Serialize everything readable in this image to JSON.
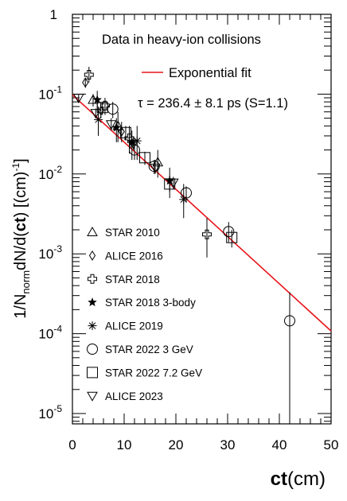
{
  "chart_data": {
    "type": "scatter",
    "annotations": {
      "header": "Data in heavy-ion collisions",
      "fit_label": "Exponential fit",
      "fit_result": "τ = 236.4 ± 8.1 ps (S=1.1)"
    },
    "y_axis_label": {
      "prefix": "1/N",
      "subscript": "norm",
      "middle": "dN/d(",
      "bold": "ct",
      "suffix": ") [(cm)",
      "superscript": "-1",
      "close": "]"
    },
    "x_axis_label": {
      "bold": "ct",
      "normal": "(cm)"
    },
    "xlim": [
      0,
      50
    ],
    "ylim": [
      8e-06,
      1
    ],
    "yscale": "log",
    "x_ticks": [
      "0",
      "10",
      "20",
      "30",
      "40",
      "50"
    ],
    "y_ticks": [
      {
        "base": "10",
        "exp": "-5",
        "value": 1e-05
      },
      {
        "base": "10",
        "exp": "-4",
        "value": 0.0001
      },
      {
        "base": "10",
        "exp": "-3",
        "value": 0.001
      },
      {
        "base": "10",
        "exp": "-2",
        "value": 0.01
      },
      {
        "base": "10",
        "exp": "-1",
        "value": 0.1
      },
      {
        "base": "1",
        "exp": "",
        "value": 1
      }
    ],
    "fit": {
      "name": "Exponential fit",
      "color": "#e8141a",
      "x": [
        0,
        50
      ],
      "y": [
        0.098,
        0.000108
      ]
    },
    "legend_position": "bottom-left",
    "series": [
      {
        "name": "STAR 2010",
        "marker": "triangle-up",
        "points": [
          {
            "x": 4.0,
            "y": 0.085,
            "ylo": 0.07,
            "yhi": 0.1
          },
          {
            "x": 8.8,
            "y": 0.04,
            "ylo": 0.025,
            "yhi": 0.06
          },
          {
            "x": 16.5,
            "y": 0.014,
            "ylo": 0.009,
            "yhi": 0.02
          }
        ]
      },
      {
        "name": "ALICE 2016",
        "marker": "diamond",
        "points": [
          {
            "x": 2.5,
            "y": 0.14,
            "ylo": 0.12,
            "yhi": 0.16
          },
          {
            "x": 5.5,
            "y": 0.062,
            "ylo": 0.05,
            "yhi": 0.08
          },
          {
            "x": 9.5,
            "y": 0.034,
            "ylo": 0.025,
            "yhi": 0.045
          }
        ]
      },
      {
        "name": "STAR 2018",
        "marker": "cross-open",
        "points": [
          {
            "x": 3.2,
            "y": 0.175,
            "ylo": 0.14,
            "yhi": 0.22
          },
          {
            "x": 6.3,
            "y": 0.072,
            "ylo": 0.055,
            "yhi": 0.09
          },
          {
            "x": 11.0,
            "y": 0.028,
            "ylo": 0.018,
            "yhi": 0.04
          },
          {
            "x": 26.0,
            "y": 0.00175,
            "ylo": 0.0009,
            "yhi": 0.0028
          }
        ]
      },
      {
        "name": "STAR 2018 3-body",
        "marker": "star-filled",
        "points": [
          {
            "x": 4.8,
            "y": 0.085,
            "ylo": 0.06,
            "yhi": 0.11
          },
          {
            "x": 8.5,
            "y": 0.038,
            "ylo": 0.025,
            "yhi": 0.05
          },
          {
            "x": 11.5,
            "y": 0.025,
            "ylo": 0.015,
            "yhi": 0.035
          },
          {
            "x": 18.8,
            "y": 0.0082,
            "ylo": 0.005,
            "yhi": 0.012
          }
        ]
      },
      {
        "name": "ALICE 2019",
        "marker": "asterisk",
        "points": [
          {
            "x": 5.0,
            "y": 0.048,
            "ylo": 0.03,
            "yhi": 0.07
          },
          {
            "x": 12.5,
            "y": 0.026,
            "ylo": 0.015,
            "yhi": 0.04
          },
          {
            "x": 21.5,
            "y": 0.0048,
            "ylo": 0.0028,
            "yhi": 0.0075
          }
        ]
      },
      {
        "name": "STAR 2022 3 GeV",
        "marker": "circle-open",
        "points": [
          {
            "x": 7.8,
            "y": 0.065,
            "ylo": 0.05,
            "yhi": 0.08
          },
          {
            "x": 12.0,
            "y": 0.02,
            "ylo": 0.015,
            "yhi": 0.025
          },
          {
            "x": 15.8,
            "y": 0.0125,
            "ylo": 0.01,
            "yhi": 0.015
          },
          {
            "x": 22.0,
            "y": 0.0058,
            "ylo": 0.0045,
            "yhi": 0.007
          },
          {
            "x": 30.2,
            "y": 0.0019,
            "ylo": 0.0014,
            "yhi": 0.0025
          },
          {
            "x": 42.0,
            "y": 0.000145,
            "ylo": 8e-06,
            "yhi": 0.00033
          }
        ]
      },
      {
        "name": "STAR 2022 7.2 GeV",
        "marker": "square-open",
        "points": [
          {
            "x": 5.8,
            "y": 0.068,
            "ylo": 0.055,
            "yhi": 0.08
          },
          {
            "x": 10.3,
            "y": 0.033,
            "ylo": 0.027,
            "yhi": 0.04
          },
          {
            "x": 14.0,
            "y": 0.016,
            "ylo": 0.013,
            "yhi": 0.019
          },
          {
            "x": 18.8,
            "y": 0.0075,
            "ylo": 0.006,
            "yhi": 0.0095
          },
          {
            "x": 30.8,
            "y": 0.0016,
            "ylo": 0.0012,
            "yhi": 0.002
          }
        ]
      },
      {
        "name": "ALICE 2023",
        "marker": "triangle-down",
        "points": [
          {
            "x": 1.2,
            "y": 0.09,
            "ylo": 0.08,
            "yhi": 0.1
          },
          {
            "x": 4.5,
            "y": 0.058,
            "ylo": 0.05,
            "yhi": 0.066
          },
          {
            "x": 7.5,
            "y": 0.042,
            "ylo": 0.035,
            "yhi": 0.05
          },
          {
            "x": 11.8,
            "y": 0.024,
            "ylo": 0.02,
            "yhi": 0.029
          },
          {
            "x": 16.0,
            "y": 0.012,
            "ylo": 0.01,
            "yhi": 0.015
          },
          {
            "x": 19.5,
            "y": 0.0078,
            "ylo": 0.0065,
            "yhi": 0.0092
          }
        ]
      }
    ]
  }
}
